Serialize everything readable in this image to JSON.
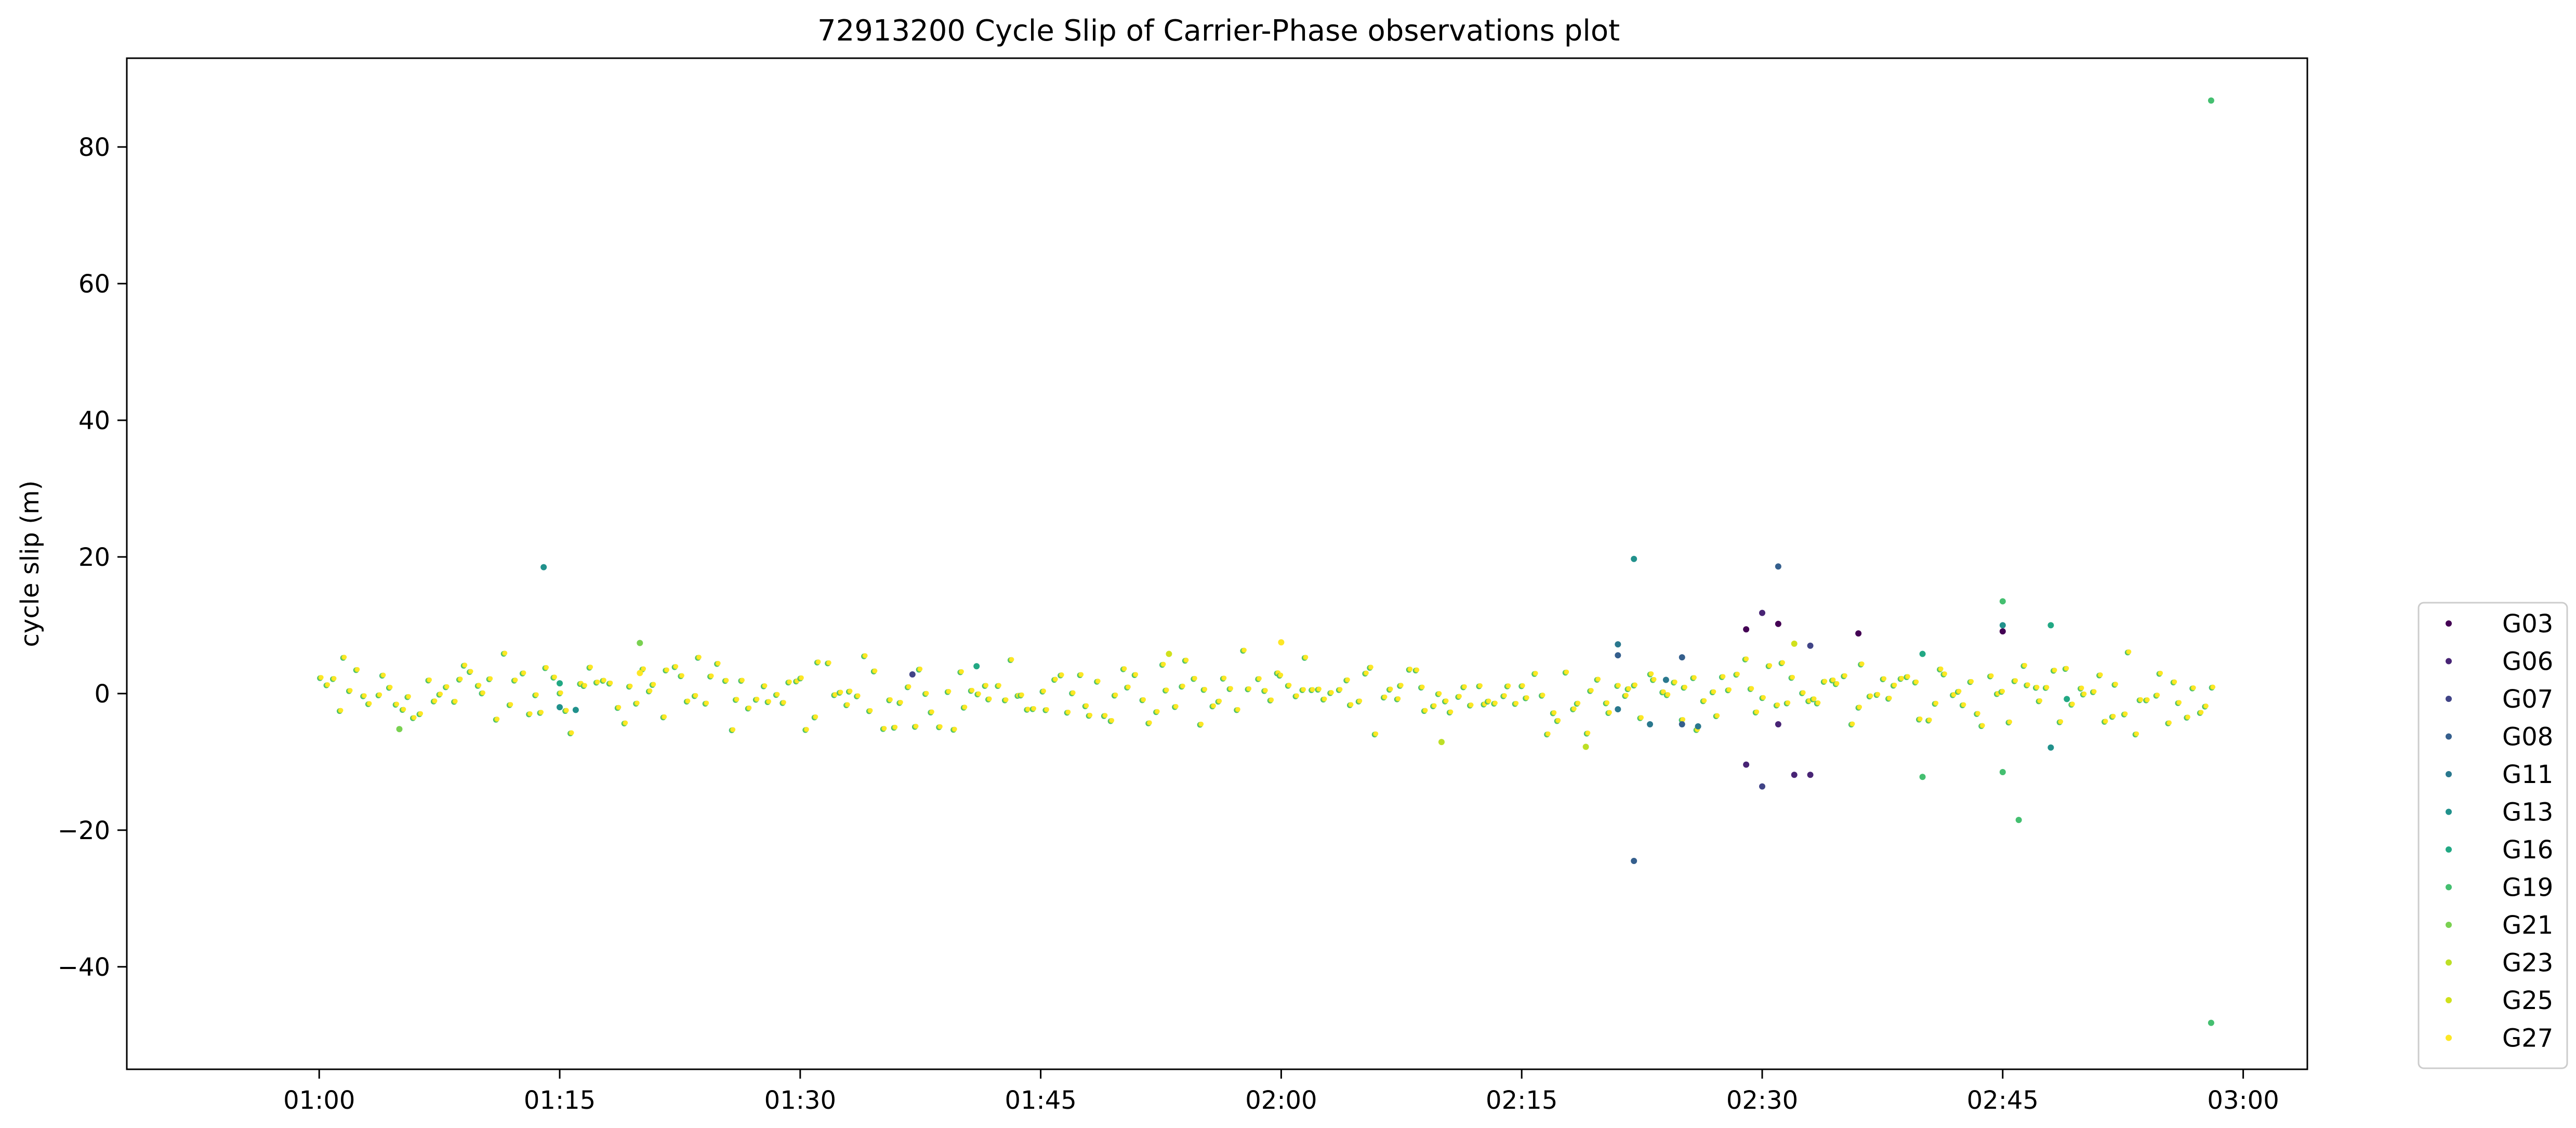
{
  "chart_data": {
    "type": "scatter",
    "title": "72913200 Cycle Slip of Carrier-Phase observations plot",
    "xlabel": "",
    "ylabel": "cycle slip (m)",
    "x_unit": "time (HH:MM)",
    "xlim": [
      "00:48",
      "03:04"
    ],
    "ylim": [
      -55,
      93
    ],
    "x_ticks": [
      "01:00",
      "01:15",
      "01:30",
      "01:45",
      "02:00",
      "02:15",
      "02:30",
      "02:45",
      "03:00"
    ],
    "y_ticks": [
      "−40",
      "−20",
      "0",
      "20",
      "40",
      "60",
      "80"
    ],
    "y_tick_values": [
      -40,
      -20,
      0,
      20,
      40,
      60,
      80
    ],
    "grid": false,
    "legend_position": "right, outside plot area, bottom",
    "series": [
      {
        "name": "G03",
        "color": "#440154",
        "points": [
          [
            "02:29",
            9.4
          ],
          [
            "02:31",
            10.2
          ],
          [
            "02:36",
            8.8
          ],
          [
            "02:45",
            9.1
          ]
        ]
      },
      {
        "name": "G06",
        "color": "#482475",
        "points": [
          [
            "02:29",
            -10.4
          ],
          [
            "02:30",
            11.8
          ],
          [
            "02:31",
            -4.5
          ],
          [
            "02:32",
            -11.9
          ],
          [
            "02:33",
            -11.9
          ]
        ]
      },
      {
        "name": "G07",
        "color": "#414487",
        "points": [
          [
            "02:30",
            -13.6
          ],
          [
            "02:33",
            7.0
          ],
          [
            "01:37",
            2.8
          ]
        ]
      },
      {
        "name": "G08",
        "color": "#355f8d",
        "points": [
          [
            "02:21",
            5.6
          ],
          [
            "02:22",
            -24.5
          ],
          [
            "02:25",
            5.3
          ],
          [
            "02:25",
            -4.5
          ],
          [
            "02:31",
            18.6
          ]
        ]
      },
      {
        "name": "G11",
        "color": "#2a788e",
        "points": [
          [
            "02:21",
            7.2
          ],
          [
            "02:21",
            -2.3
          ],
          [
            "02:23",
            -4.5
          ],
          [
            "02:24",
            2.0
          ],
          [
            "02:26",
            -4.8
          ]
        ]
      },
      {
        "name": "G13",
        "color": "#21918c",
        "points": [
          [
            "01:14",
            18.5
          ],
          [
            "01:15",
            -2.0
          ],
          [
            "01:16",
            -2.4
          ],
          [
            "02:22",
            19.7
          ],
          [
            "02:45",
            10.0
          ],
          [
            "02:48",
            -7.9
          ]
        ]
      },
      {
        "name": "G16",
        "color": "#22a884",
        "points": [
          [
            "01:15",
            1.5
          ],
          [
            "01:41",
            4.0
          ],
          [
            "02:40",
            5.8
          ],
          [
            "02:48",
            10.0
          ],
          [
            "02:49",
            -0.8
          ]
        ]
      },
      {
        "name": "G19",
        "color": "#44bf70",
        "points": [
          [
            "02:45",
            13.5
          ],
          [
            "02:45",
            -11.5
          ],
          [
            "02:46",
            -18.5
          ],
          [
            "02:58",
            86.8
          ],
          [
            "02:58",
            -48.2
          ],
          [
            "02:40",
            -12.2
          ]
        ]
      },
      {
        "name": "G21",
        "color": "#7ad151",
        "points": [
          [
            "01:20",
            7.4
          ],
          [
            "01:05",
            -5.2
          ]
        ]
      },
      {
        "name": "G23",
        "color": "#bddf26",
        "points": [
          [
            "02:19",
            -7.8
          ],
          [
            "02:10",
            -7.1
          ]
        ]
      },
      {
        "name": "G25",
        "color": "#d0e11c",
        "points": [
          [
            "01:53",
            5.8
          ],
          [
            "02:32",
            7.3
          ]
        ]
      },
      {
        "name": "G27",
        "color": "#fde725",
        "points": [
          [
            "02:00",
            7.5
          ],
          [
            "01:20",
            3.0
          ]
        ]
      }
    ],
    "dense_band": {
      "description": "Dense cluster of overlapping points from all series, roughly between -6 and +8 m, spanning 01:00 to 02:58",
      "x_range": [
        "01:00",
        "02:58"
      ],
      "y_range": [
        -6,
        8
      ]
    }
  }
}
